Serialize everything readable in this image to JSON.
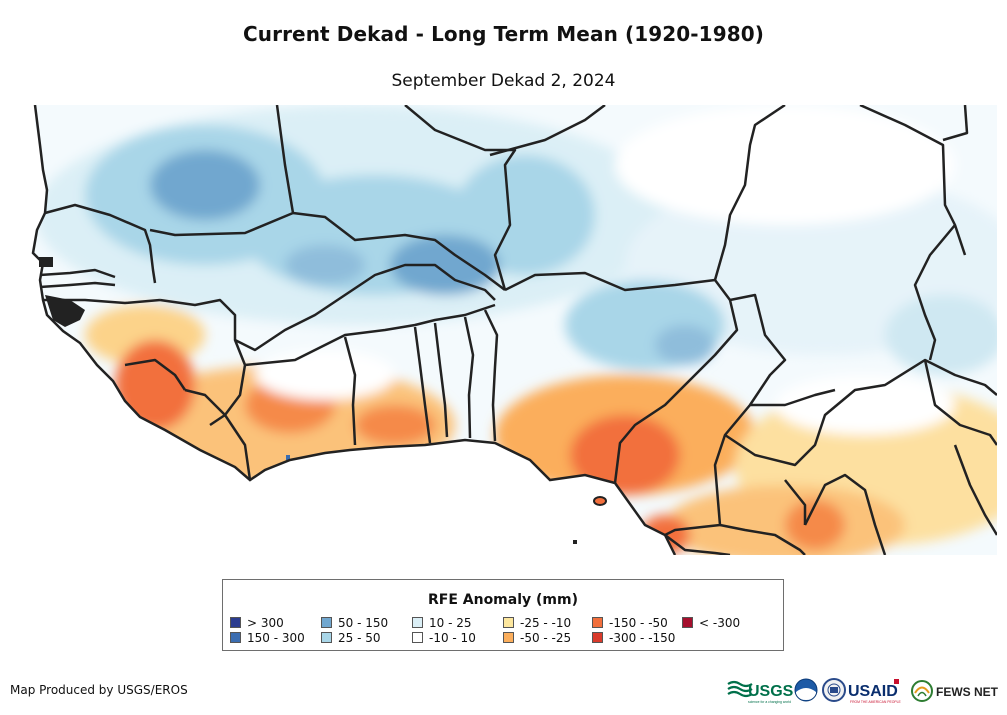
{
  "title": "Current Dekad - Long Term Mean (1920-1980)",
  "subtitle": "September Dekad 2, 2024",
  "legend": {
    "title": "RFE Anomaly (mm)",
    "items": [
      {
        "label": "> 300",
        "color": "#2b3c8f"
      },
      {
        "label": "150 - 300",
        "color": "#3b6db0"
      },
      {
        "label": "50 - 150",
        "color": "#71a7cf"
      },
      {
        "label": "25 - 50",
        "color": "#a9d6e8"
      },
      {
        "label": "10 - 25",
        "color": "#dbeff6"
      },
      {
        "label": "-10 - 10",
        "color": "#ffffff"
      },
      {
        "label": "-25 - -10",
        "color": "#fde79e"
      },
      {
        "label": "-50 - -25",
        "color": "#fbae5c"
      },
      {
        "label": "-150 - -50",
        "color": "#f26f3c"
      },
      {
        "label": "-300 - -150",
        "color": "#d93a2b"
      },
      {
        "label": "< -300",
        "color": "#a50f2d"
      }
    ]
  },
  "credit": "Map Produced by USGS/EROS",
  "logos": {
    "usgs": "USGS",
    "usgs_tagline": "science for a changing world",
    "usaid": "USAID",
    "usaid_tagline": "FROM THE AMERICAN PEOPLE",
    "fewsnet": "FEWS NET"
  }
}
